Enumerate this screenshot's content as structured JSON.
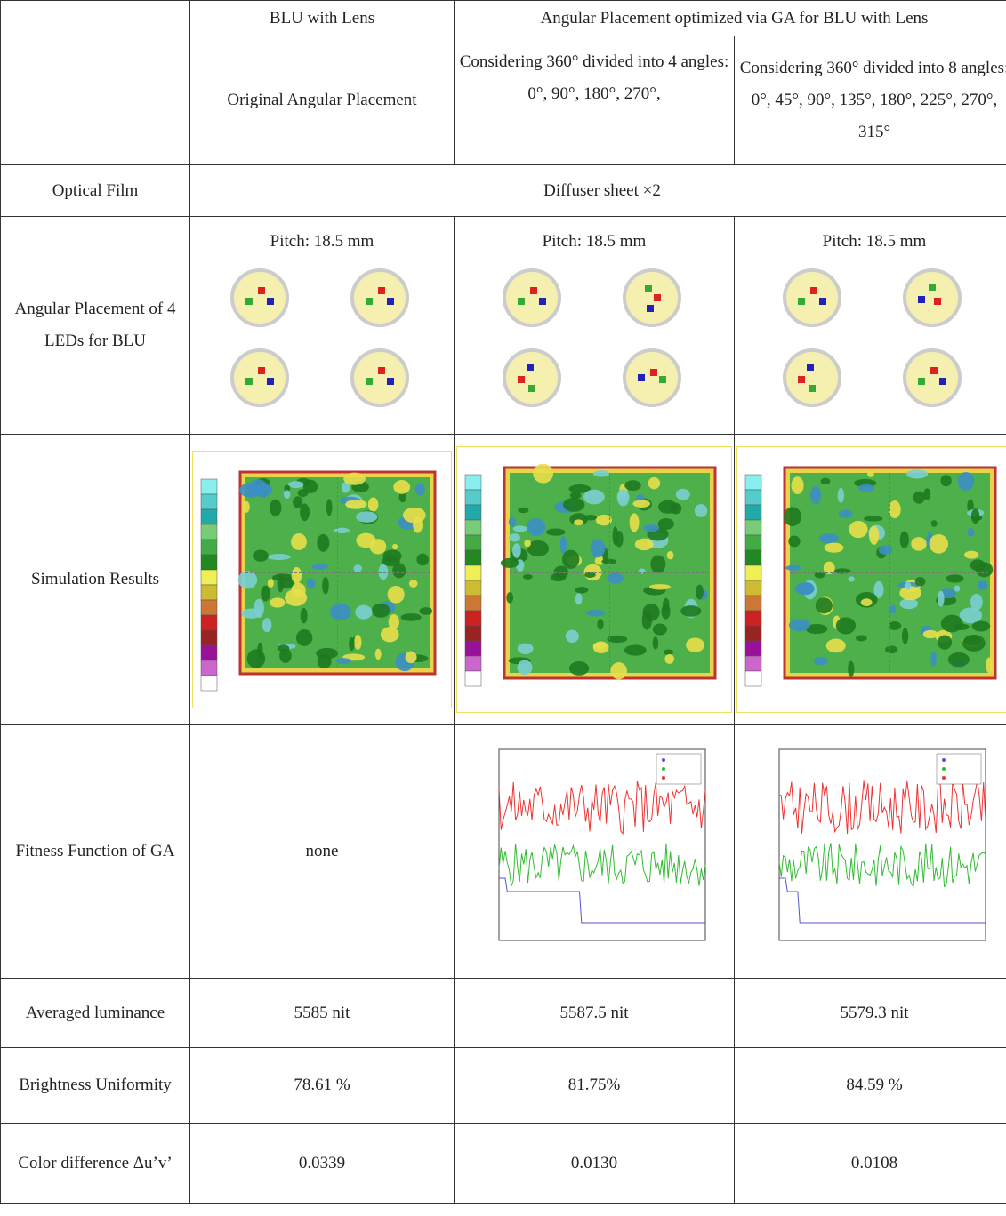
{
  "table": {
    "header": [
      "BLU with Lens",
      "Angular Placement optimized via GA for BLU with Lens"
    ],
    "subheader": [
      "Original Angular Placement",
      "Considering 360° divided into 4 angles: 0°, 90°, 180°, 270°,",
      "Considering 360° divided into 8 angles: 0°, 45°, 90°, 135°, 180°, 225°, 270°, 315°"
    ],
    "optical_film": {
      "label": "Optical Film",
      "value": "Diffuser sheet ×2"
    },
    "placement": {
      "label": "Angular Placement of 4 LEDs for BLU",
      "pitch": [
        "Pitch: 18.5 mm",
        "Pitch: 18.5 mm",
        "Pitch: 18.5 mm"
      ]
    },
    "simulation": {
      "label": "Simulation Results"
    },
    "fitness": {
      "label": "Fitness Function of GA",
      "first": "none"
    },
    "rows": [
      [
        "Averaged luminance",
        "5585 nit",
        "5587.5 nit",
        "5579.3 nit"
      ],
      [
        "Brightness Uniformity",
        "78.61 %",
        "81.75%",
        "84.59 %"
      ],
      [
        "Color difference Δu’v’",
        "0.0339",
        "0.0130",
        "0.0108"
      ]
    ]
  }
}
